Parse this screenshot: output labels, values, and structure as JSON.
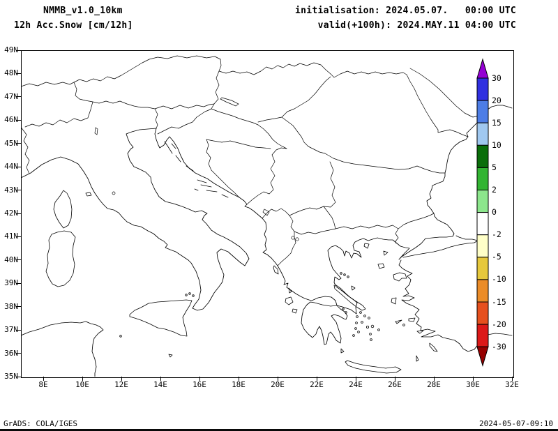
{
  "header": {
    "model": "NMMB_v1.0_10km",
    "field": "12h Acc.Snow [cm/12h]",
    "init_line": "initialisation: 2024.05.07.   00:00 UTC",
    "valid_line": "valid(+100h): 2024.MAY.11 04:00 UTC"
  },
  "axes": {
    "lat_labels": [
      "49N",
      "48N",
      "47N",
      "46N",
      "45N",
      "44N",
      "43N",
      "42N",
      "41N",
      "40N",
      "39N",
      "38N",
      "37N",
      "36N",
      "35N"
    ],
    "lon_labels": [
      "8E",
      "10E",
      "12E",
      "14E",
      "16E",
      "18E",
      "20E",
      "22E",
      "24E",
      "26E",
      "28E",
      "30E",
      "32E"
    ]
  },
  "colorbar": {
    "tick_labels": [
      "30",
      "20",
      "15",
      "10",
      "5",
      "2",
      "0",
      "-2",
      "-5",
      "-10",
      "-15",
      "-20",
      "-30"
    ],
    "colors_top_to_bottom": [
      "#9400d3",
      "#3030e0",
      "#4d7de6",
      "#a0c8f0",
      "#0a6e0a",
      "#32b432",
      "#8ce68c",
      "#ffffff",
      "#ffffc8",
      "#e6c83c",
      "#eb8c28",
      "#e6501e",
      "#dc1919",
      "#960000"
    ]
  },
  "footer": {
    "credit": "GrADS: COLA/IGES",
    "timestamp": "2024-05-07-09:10"
  }
}
